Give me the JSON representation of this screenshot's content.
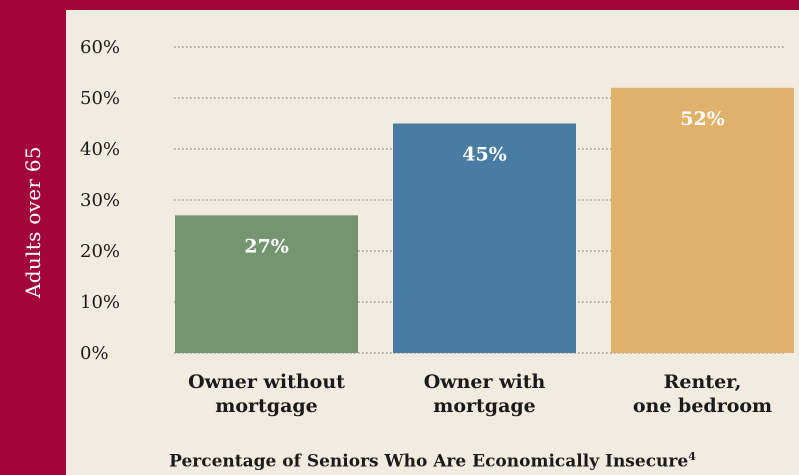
{
  "chart_data": {
    "type": "bar",
    "categories": [
      "Owner without mortgage",
      "Owner with mortgage",
      "Renter, one bedroom"
    ],
    "category_lines": [
      [
        "Owner without",
        "mortgage"
      ],
      [
        "Owner with",
        "mortgage"
      ],
      [
        "Renter,",
        "one bedroom"
      ]
    ],
    "values": [
      27,
      45,
      52
    ],
    "data_labels": [
      "27%",
      "45%",
      "52%"
    ],
    "bar_colors": [
      "#759570",
      "#487ca3",
      "#dfb16b"
    ],
    "ylabel": "Adults over 65",
    "ylim": [
      0,
      60
    ],
    "yticks": [
      0,
      10,
      20,
      30,
      40,
      50,
      60
    ],
    "ytick_labels": [
      "0%",
      "10%",
      "20%",
      "30%",
      "40%",
      "50%",
      "60%"
    ],
    "grid": true,
    "caption": "Percentage of Seniors Who Are Economically Insecure",
    "caption_footnote": "4"
  },
  "colors": {
    "background": "#f1ebe0",
    "frame": "#a3043a",
    "grid": "#9a9a9a",
    "text": "#1a1a1a"
  }
}
